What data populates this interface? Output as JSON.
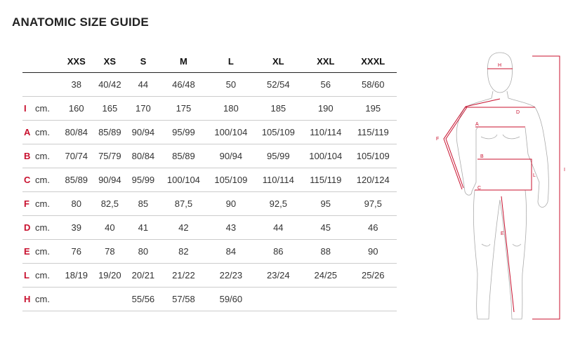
{
  "title": "ANATOMIC SIZE GUIDE",
  "sizes": [
    "XXS",
    "XS",
    "S",
    "M",
    "L",
    "XL",
    "XXL",
    "XXXL"
  ],
  "rows": [
    {
      "key": "",
      "unit": "",
      "values": [
        "38",
        "40/42",
        "44",
        "46/48",
        "50",
        "52/54",
        "56",
        "58/60"
      ]
    },
    {
      "key": "I",
      "unit": "cm.",
      "values": [
        "160",
        "165",
        "170",
        "175",
        "180",
        "185",
        "190",
        "195"
      ]
    },
    {
      "key": "A",
      "unit": "cm.",
      "values": [
        "80/84",
        "85/89",
        "90/94",
        "95/99",
        "100/104",
        "105/109",
        "110/114",
        "115/119"
      ]
    },
    {
      "key": "B",
      "unit": "cm.",
      "values": [
        "70/74",
        "75/79",
        "80/84",
        "85/89",
        "90/94",
        "95/99",
        "100/104",
        "105/109"
      ]
    },
    {
      "key": "C",
      "unit": "cm.",
      "values": [
        "85/89",
        "90/94",
        "95/99",
        "100/104",
        "105/109",
        "110/114",
        "115/119",
        "120/124"
      ]
    },
    {
      "key": "F",
      "unit": "cm.",
      "values": [
        "80",
        "82,5",
        "85",
        "87,5",
        "90",
        "92,5",
        "95",
        "97,5"
      ]
    },
    {
      "key": "D",
      "unit": "cm.",
      "values": [
        "39",
        "40",
        "41",
        "42",
        "43",
        "44",
        "45",
        "46"
      ]
    },
    {
      "key": "E",
      "unit": "cm.",
      "values": [
        "76",
        "78",
        "80",
        "82",
        "84",
        "86",
        "88",
        "90"
      ]
    },
    {
      "key": "L",
      "unit": "cm.",
      "values": [
        "18/19",
        "19/20",
        "20/21",
        "21/22",
        "22/23",
        "23/24",
        "24/25",
        "25/26"
      ]
    },
    {
      "key": "H",
      "unit": "cm.",
      "values": [
        "",
        "",
        "55/56",
        "57/58",
        "59/60",
        "",
        "",
        ""
      ]
    }
  ],
  "figure_labels": {
    "H": "H",
    "I": "I",
    "D": "D",
    "F": "F",
    "A": "A",
    "B": "B",
    "C": "C",
    "L": "L",
    "E": "E"
  },
  "colors": {
    "accent": "#c8102e",
    "outline": "#aaaaaa"
  }
}
